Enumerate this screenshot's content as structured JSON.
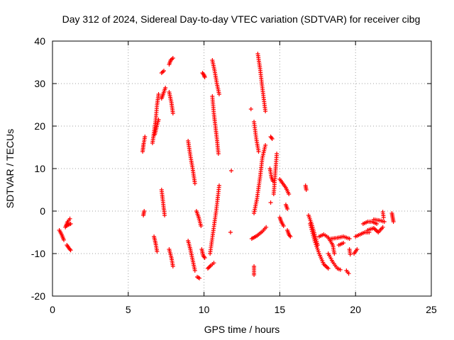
{
  "chart_data": {
    "type": "scatter",
    "title": "Day 312 of 2024, Sidereal Day-to-day VTEC variation (SDTVAR) for receiver cibg",
    "xlabel": "GPS time / hours",
    "ylabel": "SDTVAR / TECUs",
    "xlim": [
      0,
      25
    ],
    "ylim": [
      -20,
      40
    ],
    "xticks": [
      0,
      5,
      10,
      15,
      20,
      25
    ],
    "yticks": [
      -20,
      -10,
      0,
      10,
      20,
      30,
      40
    ],
    "grid": true,
    "marker": "+",
    "color": "#ff0000",
    "tracks": [
      [
        [
          0.45,
          -4.5
        ],
        [
          0.6,
          -5.5
        ],
        [
          0.75,
          -6.8
        ]
      ],
      [
        [
          0.85,
          -3.8
        ],
        [
          1.0,
          -2.5
        ],
        [
          1.15,
          -1.8
        ]
      ],
      [
        [
          0.9,
          -3.5
        ],
        [
          1.05,
          -3.2
        ],
        [
          1.2,
          -3.0
        ]
      ],
      [
        [
          0.95,
          -8.0
        ],
        [
          1.1,
          -8.8
        ],
        [
          1.2,
          -9.2
        ]
      ],
      [
        [
          5.95,
          14.0
        ],
        [
          6.0,
          15.5
        ],
        [
          6.1,
          17.5
        ]
      ],
      [
        [
          6.0,
          -1.0
        ],
        [
          6.05,
          0.0
        ]
      ],
      [
        [
          6.6,
          16.0
        ],
        [
          6.7,
          18.5
        ],
        [
          6.8,
          21.0
        ],
        [
          6.9,
          25.0
        ],
        [
          7.0,
          27.5
        ]
      ],
      [
        [
          6.75,
          18.0
        ],
        [
          6.85,
          19.5
        ],
        [
          7.0,
          21.5
        ]
      ],
      [
        [
          6.7,
          -6.0
        ],
        [
          6.8,
          -7.5
        ],
        [
          6.9,
          -9.5
        ]
      ],
      [
        [
          7.2,
          5.0
        ],
        [
          7.3,
          2.0
        ],
        [
          7.4,
          -1.0
        ]
      ],
      [
        [
          7.2,
          26.5
        ],
        [
          7.3,
          27.5
        ],
        [
          7.45,
          29.0
        ]
      ],
      [
        [
          7.2,
          32.5
        ],
        [
          7.35,
          33.0
        ]
      ],
      [
        [
          7.7,
          34.5
        ],
        [
          7.8,
          35.5
        ],
        [
          7.95,
          36.0
        ]
      ],
      [
        [
          7.7,
          28.0
        ],
        [
          7.85,
          25.5
        ],
        [
          7.95,
          23.0
        ]
      ],
      [
        [
          7.7,
          -9.0
        ],
        [
          7.85,
          -11.0
        ],
        [
          7.95,
          -13.0
        ]
      ],
      [
        [
          8.95,
          16.5
        ],
        [
          9.1,
          13.0
        ],
        [
          9.25,
          10.0
        ],
        [
          9.4,
          6.5
        ]
      ],
      [
        [
          8.95,
          -7.0
        ],
        [
          9.1,
          -9.0
        ],
        [
          9.25,
          -11.5
        ],
        [
          9.4,
          -14.0
        ]
      ],
      [
        [
          9.5,
          0.0
        ],
        [
          9.65,
          -1.5
        ],
        [
          9.8,
          -3.5
        ]
      ],
      [
        [
          9.55,
          -15.5
        ],
        [
          9.7,
          -15.8
        ]
      ],
      [
        [
          9.9,
          32.5
        ],
        [
          10.0,
          32.0
        ],
        [
          10.05,
          31.5
        ]
      ],
      [
        [
          9.85,
          -9.0
        ],
        [
          9.95,
          -10.5
        ],
        [
          10.05,
          -11.0
        ]
      ],
      [
        [
          10.25,
          -13.5
        ],
        [
          10.45,
          -12.8
        ],
        [
          10.65,
          -12.2
        ]
      ],
      [
        [
          10.4,
          -10.0
        ],
        [
          10.6,
          -5.0
        ],
        [
          10.8,
          0.0
        ],
        [
          11.0,
          6.0
        ]
      ],
      [
        [
          10.55,
          35.5
        ],
        [
          10.7,
          33.0
        ],
        [
          10.85,
          30.0
        ],
        [
          11.0,
          27.5
        ]
      ],
      [
        [
          10.55,
          27.0
        ],
        [
          10.65,
          23.0
        ],
        [
          10.75,
          20.0
        ],
        [
          10.85,
          17.0
        ],
        [
          10.95,
          13.5
        ]
      ],
      [
        [
          11.8,
          9.5
        ]
      ],
      [
        [
          11.75,
          -5.0
        ]
      ],
      [
        [
          13.1,
          24.0
        ]
      ],
      [
        [
          13.15,
          -6.5
        ],
        [
          13.5,
          -5.8
        ],
        [
          13.85,
          -4.8
        ],
        [
          14.1,
          -3.8
        ]
      ],
      [
        [
          13.3,
          -13.0
        ],
        [
          13.3,
          -15.0
        ]
      ],
      [
        [
          13.3,
          21.0
        ],
        [
          13.45,
          17.0
        ],
        [
          13.6,
          14.0
        ]
      ],
      [
        [
          13.3,
          -0.5
        ],
        [
          13.5,
          3.0
        ],
        [
          13.7,
          8.0
        ],
        [
          13.85,
          12.5
        ],
        [
          14.05,
          15.5
        ]
      ],
      [
        [
          13.55,
          37.0
        ],
        [
          13.7,
          33.5
        ],
        [
          13.85,
          29.0
        ],
        [
          14.05,
          23.5
        ]
      ],
      [
        [
          14.35,
          10.0
        ],
        [
          14.45,
          8.0
        ],
        [
          14.55,
          7.0
        ]
      ],
      [
        [
          14.4,
          17.5
        ],
        [
          14.5,
          17.0
        ]
      ],
      [
        [
          14.4,
          2.0
        ]
      ],
      [
        [
          14.6,
          4.0
        ],
        [
          14.8,
          13.5
        ]
      ],
      [
        [
          15.0,
          7.5
        ],
        [
          15.2,
          6.5
        ],
        [
          15.4,
          5.5
        ],
        [
          15.6,
          4.0
        ]
      ],
      [
        [
          15.0,
          -1.5
        ],
        [
          15.1,
          -2.5
        ],
        [
          15.25,
          -3.5
        ]
      ],
      [
        [
          15.5,
          -4.5
        ],
        [
          15.6,
          -5.5
        ],
        [
          15.7,
          -6.0
        ]
      ],
      [
        [
          15.4,
          1.5
        ],
        [
          15.5,
          0.5
        ]
      ],
      [
        [
          16.7,
          6.0
        ],
        [
          16.75,
          5.0
        ]
      ],
      [
        [
          16.9,
          -1.0
        ],
        [
          17.1,
          -3.0
        ],
        [
          17.3,
          -5.5
        ],
        [
          17.5,
          -8.0
        ]
      ],
      [
        [
          17.0,
          -3.0
        ],
        [
          17.3,
          -7.0
        ],
        [
          17.6,
          -10.0
        ],
        [
          17.9,
          -12.5
        ],
        [
          18.2,
          -13.5
        ]
      ],
      [
        [
          17.6,
          -6.0
        ],
        [
          17.9,
          -5.5
        ],
        [
          18.2,
          -6.2
        ],
        [
          18.5,
          -8.0
        ],
        [
          18.6,
          -10.0
        ]
      ],
      [
        [
          18.2,
          -10.0
        ],
        [
          18.5,
          -12.0
        ],
        [
          18.8,
          -13.5
        ],
        [
          19.0,
          -13.8
        ]
      ],
      [
        [
          18.4,
          -6.5
        ],
        [
          18.8,
          -6.3
        ],
        [
          19.2,
          -6.0
        ],
        [
          19.6,
          -6.5
        ]
      ],
      [
        [
          18.9,
          -8.0
        ],
        [
          19.2,
          -7.5
        ]
      ],
      [
        [
          19.4,
          -14.0
        ],
        [
          19.55,
          -14.7
        ]
      ],
      [
        [
          19.6,
          -9.0
        ],
        [
          19.65,
          -10.2
        ]
      ],
      [
        [
          19.9,
          -10.0
        ],
        [
          20.1,
          -9.0
        ]
      ],
      [
        [
          20.0,
          -6.0
        ],
        [
          20.3,
          -5.5
        ],
        [
          20.6,
          -5.0
        ],
        [
          20.9,
          -5.0
        ]
      ],
      [
        [
          20.5,
          -3.0
        ],
        [
          20.8,
          -2.5
        ],
        [
          21.1,
          -2.5
        ],
        [
          21.4,
          -3.0
        ]
      ],
      [
        [
          20.8,
          -4.5
        ],
        [
          21.2,
          -4.0
        ],
        [
          21.5,
          -5.0
        ],
        [
          21.8,
          -3.8
        ]
      ],
      [
        [
          21.2,
          -2.0
        ],
        [
          21.6,
          -2.2
        ],
        [
          21.9,
          -2.5
        ]
      ],
      [
        [
          21.8,
          -0.2
        ],
        [
          21.85,
          -1.5
        ]
      ],
      [
        [
          22.4,
          -0.5
        ],
        [
          22.45,
          -1.5
        ],
        [
          22.5,
          -2.5
        ]
      ]
    ]
  }
}
